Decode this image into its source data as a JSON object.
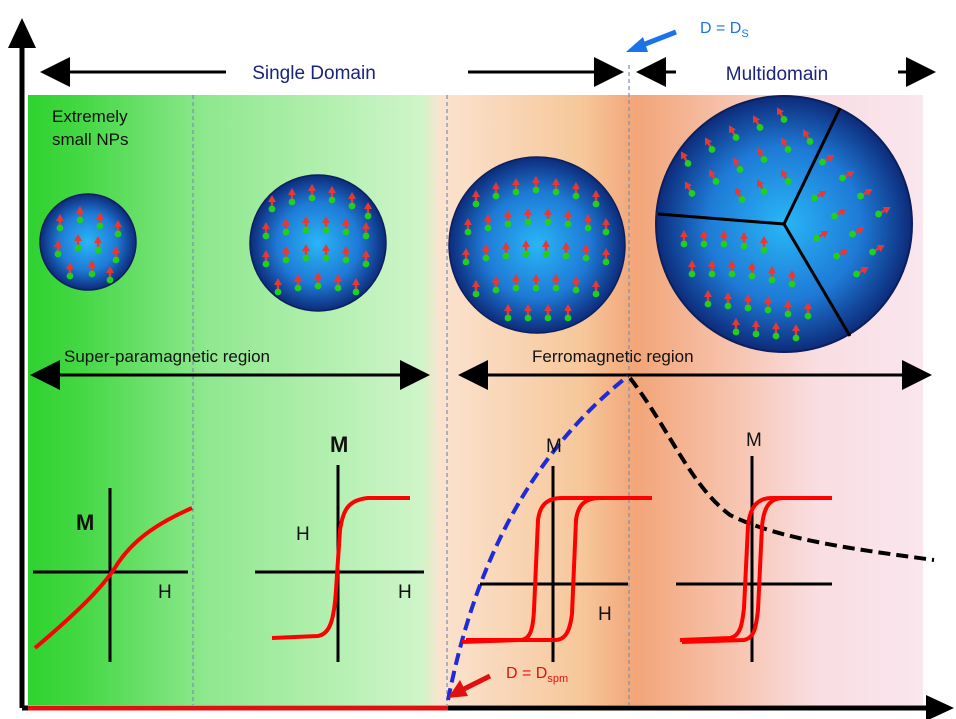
{
  "header": {
    "single_domain_label": "Single Domain",
    "multidomain_label": "Multidomain",
    "ds_label_main": "D = D",
    "ds_label_sub": "S"
  },
  "regions": {
    "extremely_small_line1": "Extremely",
    "extremely_small_line2": "small NPs",
    "superparamagnetic_label": "Super-paramagnetic region",
    "ferromagnetic_label": "Ferromagnetic region"
  },
  "loops": {
    "p1_m": "M",
    "p1_h": "H",
    "p2_m": "M",
    "p2_h_left": "H",
    "p2_h_right": "H",
    "p3_m": "M",
    "p3_h": "H",
    "p4_m": "M"
  },
  "dspm": {
    "main": "D = D",
    "sub": "spm"
  },
  "colors": {
    "arrow_blue": "#1a73e8",
    "label_navy": "#1a237e",
    "curve_red": "#ff0000",
    "dspm_red": "#e01010",
    "coercivity_curve": "#1f2bd6",
    "decay_curve": "#000000"
  }
}
